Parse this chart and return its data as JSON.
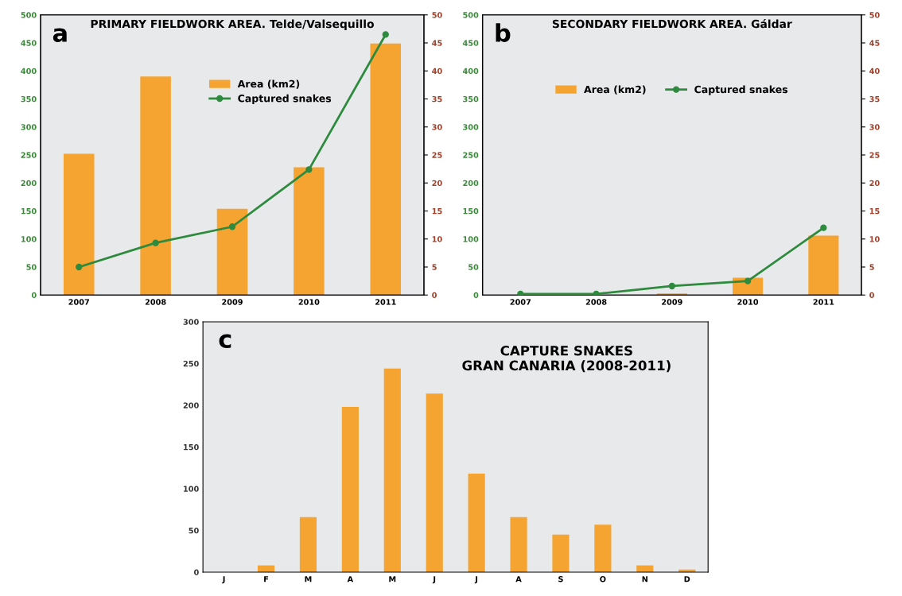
{
  "chart_data": [
    {
      "type": "bar",
      "title": "PRIMARY FIELDWORK AREA. Telde/Valsequillo",
      "annotations": [
        "a"
      ],
      "categories": [
        "2007",
        "2008",
        "2009",
        "2010",
        "2011"
      ],
      "series": [
        {
          "name": "Area (km2)",
          "color": "#f5a431",
          "values": [
            252,
            390,
            154,
            228,
            449
          ]
        },
        {
          "name": "Captured snakes",
          "type": "line",
          "axis": "y2",
          "color": "#2e8b3e",
          "values": [
            5,
            9.3,
            12.2,
            22.4,
            46.5
          ]
        }
      ],
      "ylim": [
        0,
        500
      ],
      "yticks": [
        0,
        50,
        100,
        150,
        200,
        250,
        300,
        350,
        400,
        450,
        500
      ],
      "y2lim": [
        0,
        50
      ],
      "y2ticks": [
        0,
        5,
        10,
        15,
        20,
        25,
        30,
        35,
        40,
        45,
        50
      ],
      "grid": false,
      "legend": "top",
      "marker": "circle"
    },
    {
      "type": "bar",
      "title": "SECONDARY FIELDWORK AREA. Gáldar",
      "annotations": [
        "b"
      ],
      "categories": [
        "2007",
        "2008",
        "2009",
        "2010",
        "2011"
      ],
      "series": [
        {
          "name": "Area (km2)",
          "color": "#f5a431",
          "values": [
            0,
            0,
            3,
            31,
            106
          ]
        },
        {
          "name": "Captured snakes",
          "type": "line",
          "axis": "y2",
          "color": "#2e8b3e",
          "values": [
            0.2,
            0.2,
            1.6,
            2.5,
            12
          ]
        }
      ],
      "ylim": [
        0,
        500
      ],
      "yticks": [
        0,
        50,
        100,
        150,
        200,
        250,
        300,
        350,
        400,
        450,
        500
      ],
      "y2lim": [
        0,
        50
      ],
      "y2ticks": [
        0,
        5,
        10,
        15,
        20,
        25,
        30,
        35,
        40,
        45,
        50
      ],
      "grid": false,
      "legend": "top",
      "marker": "circle"
    },
    {
      "type": "bar",
      "title": "CAPTURE SNAKES\nGRAN CANARIA (2008-2011)",
      "annotations": [
        "c"
      ],
      "categories": [
        "J",
        "F",
        "M",
        "A",
        "M",
        "J",
        "J",
        "A",
        "S",
        "O",
        "N",
        "D"
      ],
      "series": [
        {
          "color": "#f5a431",
          "values": [
            0,
            8,
            66,
            198,
            244,
            214,
            118,
            66,
            45,
            57,
            8,
            3
          ]
        }
      ],
      "ylim": [
        0,
        300
      ],
      "yticks": [
        0,
        50,
        100,
        150,
        200,
        250,
        300
      ],
      "grid": false,
      "legend": false
    }
  ]
}
